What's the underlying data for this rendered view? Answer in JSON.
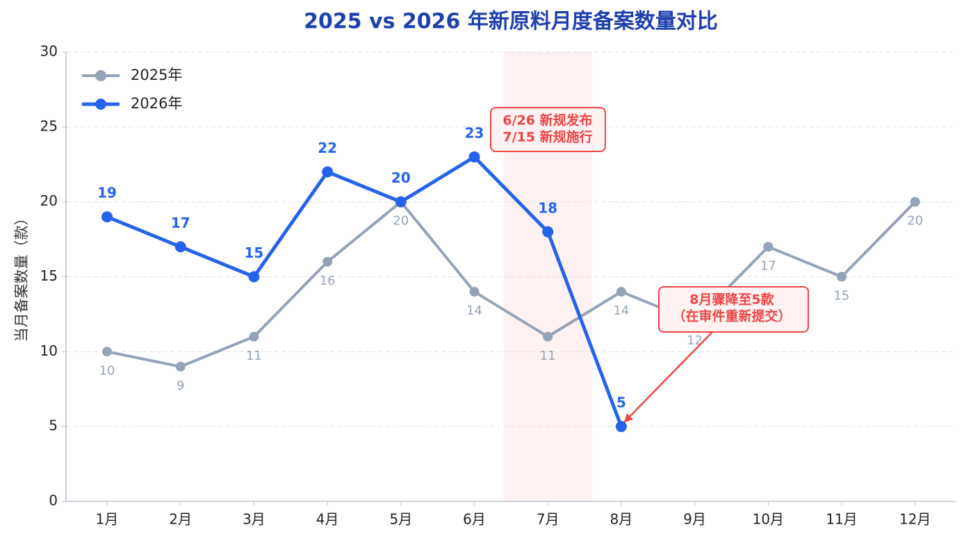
{
  "chart_data": {
    "type": "line",
    "title": "2025 vs 2026 年新原料月度备案数量对比",
    "y_label": "当月备案数量（款）",
    "categories": [
      "1月",
      "2月",
      "3月",
      "4月",
      "5月",
      "6月",
      "7月",
      "8月",
      "9月",
      "10月",
      "11月",
      "12月"
    ],
    "series": [
      {
        "name": "2025年",
        "color": "#94a3b8",
        "values": [
          10,
          9,
          11,
          16,
          20,
          14,
          11,
          14,
          12,
          17,
          15,
          20
        ]
      },
      {
        "name": "2026年",
        "color": "#2563eb",
        "values": [
          19,
          17,
          15,
          22,
          20,
          23,
          18,
          5,
          null,
          null,
          null,
          null
        ]
      }
    ],
    "ylim": [
      0,
      30
    ],
    "yticks": [
      0,
      5,
      10,
      15,
      20,
      25,
      30
    ],
    "grid": true,
    "legend": "upper left",
    "annotations": [
      {
        "lines": [
          "6/26 新规发布",
          "7/15 新规施行"
        ],
        "color": "#ef4444"
      },
      {
        "lines": [
          "8月骤降至5款",
          "（在审件重新提交）"
        ],
        "color": "#ef4444"
      }
    ]
  }
}
